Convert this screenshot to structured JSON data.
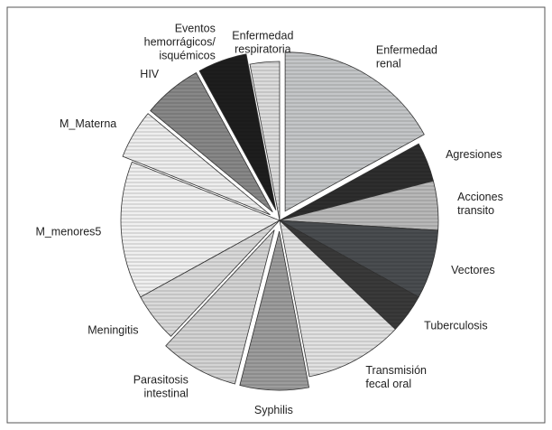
{
  "chart_data": {
    "type": "pie",
    "categories": [
      "Enfermedad\nrenal",
      "Agresiones",
      "Acciones\ntransito",
      "Vectores",
      "Tuberculosis",
      "Transmisión\nfecal oral",
      "Syphilis",
      "Parasitosis\nintestinal",
      "Meningitis",
      "M_menores5",
      "M_Materna",
      "HIV",
      "Eventos\nhemorrágicos/\nisquémicos",
      "Enfermedad\nrespiratoria"
    ],
    "values": [
      17,
      4,
      5,
      7,
      4,
      10,
      7,
      8,
      5,
      14,
      5,
      6,
      5,
      3
    ],
    "colors": [
      "#c4c6c8",
      "#2e2e2e",
      "#b9b9b9",
      "#4a4d50",
      "#3a3a3a",
      "#e2e2e2",
      "#9d9d9d",
      "#d4d4d4",
      "#dadada",
      "#f0f0f0",
      "#eeeeee",
      "#888888",
      "#1e1e1e",
      "#dcdcdc"
    ],
    "exploded": [
      true,
      false,
      false,
      false,
      false,
      false,
      true,
      true,
      false,
      false,
      true,
      true,
      true,
      false
    ]
  }
}
